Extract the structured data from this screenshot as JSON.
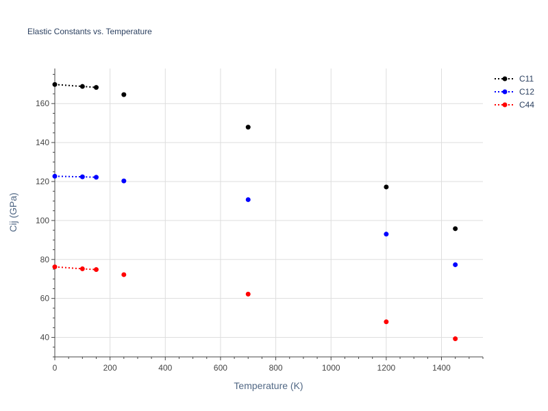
{
  "chart_data": {
    "type": "scatter",
    "title": "Elastic Constants vs. Temperature",
    "xlabel": "Temperature (K)",
    "ylabel": "Cij (GPa)",
    "xlim": [
      0,
      1550
    ],
    "ylim": [
      30,
      178
    ],
    "x_ticks": [
      0,
      200,
      400,
      600,
      800,
      1000,
      1200,
      1400
    ],
    "y_ticks": [
      40,
      60,
      80,
      100,
      120,
      140,
      160
    ],
    "grid": true,
    "legend_position": "top-right",
    "series": [
      {
        "name": "C11",
        "color": "#000000",
        "x": [
          0,
          100,
          150,
          250,
          700,
          1200,
          1450
        ],
        "y": [
          169.8,
          168.8,
          168.3,
          164.6,
          147.9,
          117.2,
          95.8
        ],
        "dotted_segments": [
          [
            0,
            1
          ],
          [
            1,
            2
          ]
        ]
      },
      {
        "name": "C12",
        "color": "#0000ff",
        "x": [
          0,
          100,
          150,
          250,
          700,
          1200,
          1450
        ],
        "y": [
          122.7,
          122.4,
          122.2,
          120.3,
          110.7,
          93.0,
          77.3
        ],
        "dotted_segments": [
          [
            0,
            1
          ],
          [
            1,
            2
          ]
        ]
      },
      {
        "name": "C44",
        "color": "#ff0000",
        "x": [
          0,
          100,
          150,
          250,
          700,
          1200,
          1450
        ],
        "y": [
          76.2,
          75.2,
          74.8,
          72.2,
          62.2,
          48.0,
          39.3
        ],
        "dotted_segments": [
          [
            0,
            1
          ],
          [
            1,
            2
          ]
        ]
      }
    ]
  }
}
